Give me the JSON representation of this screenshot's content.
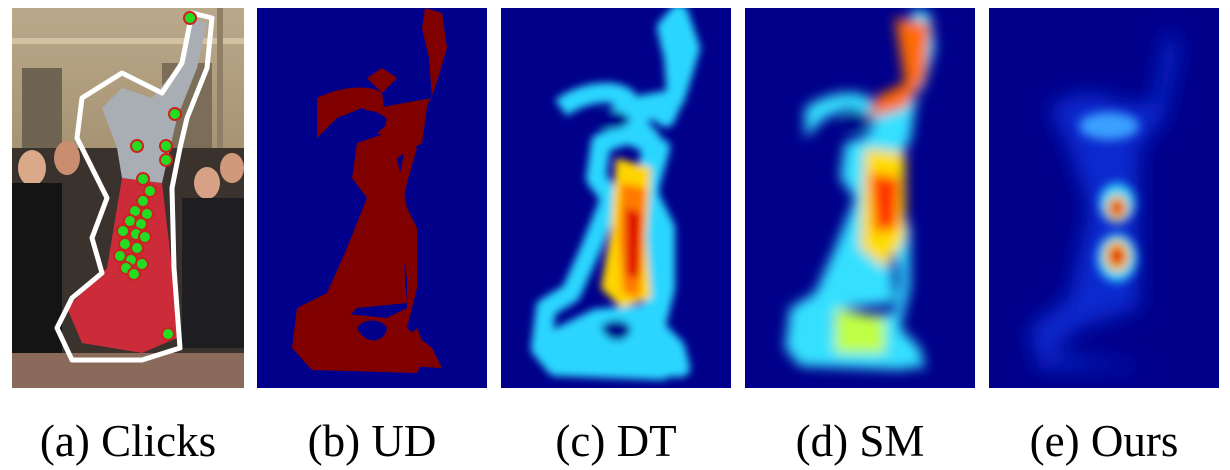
{
  "figure": {
    "panels": [
      {
        "id": "a",
        "caption": "(a) Clicks"
      },
      {
        "id": "b",
        "caption": "(b) UD"
      },
      {
        "id": "c",
        "caption": "(c) DT"
      },
      {
        "id": "d",
        "caption": "(d) SM"
      },
      {
        "id": "e",
        "caption": "(e) Ours"
      }
    ],
    "colors": {
      "background_map": "#00008b",
      "ud_fill": "#800000",
      "click_positive": "#22dd22",
      "click_border": "#cc2222",
      "mask_outline": "#ffffff"
    }
  }
}
